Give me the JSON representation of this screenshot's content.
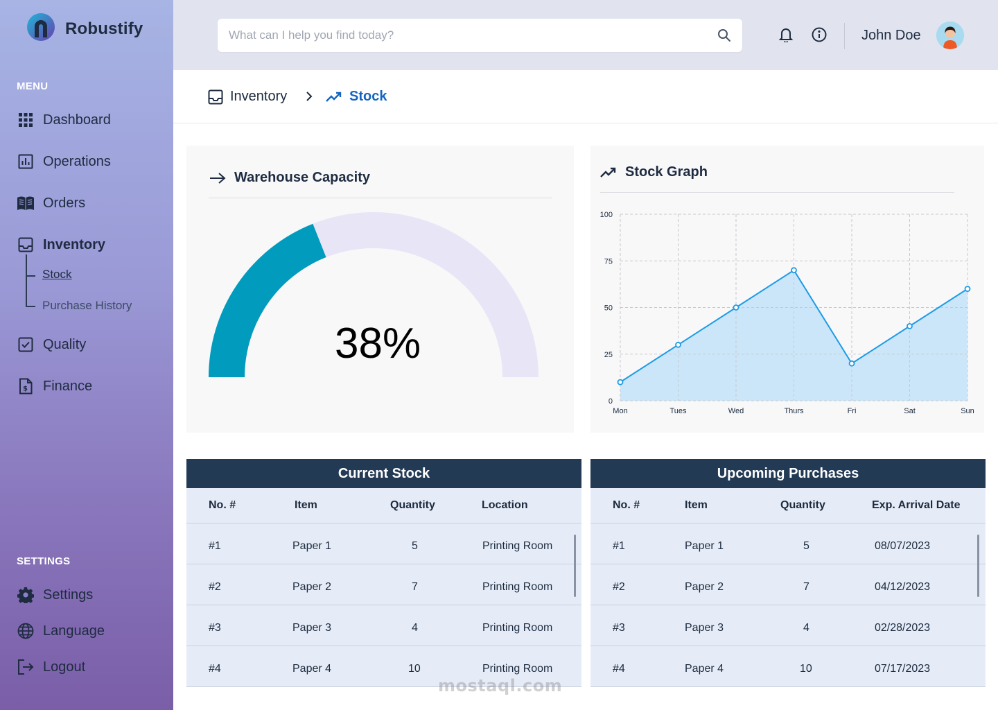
{
  "brand": {
    "name": "Robustify"
  },
  "sidebar": {
    "menu_label": "MENU",
    "items": [
      {
        "label": "Dashboard",
        "icon": "grid-icon"
      },
      {
        "label": "Operations",
        "icon": "bar-chart-icon"
      },
      {
        "label": "Orders",
        "icon": "book-icon"
      },
      {
        "label": "Inventory",
        "icon": "inbox-icon"
      },
      {
        "label": "Quality",
        "icon": "checkbox-icon"
      },
      {
        "label": "Finance",
        "icon": "invoice-icon"
      }
    ],
    "sub_items": [
      {
        "label": "Stock"
      },
      {
        "label": "Purchase History"
      }
    ],
    "settings_label": "SETTINGS",
    "settings_items": [
      {
        "label": "Settings",
        "icon": "gear-icon"
      },
      {
        "label": "Language",
        "icon": "globe-icon"
      },
      {
        "label": "Logout",
        "icon": "logout-icon"
      }
    ]
  },
  "header": {
    "search_placeholder": "What can I help you find today?",
    "user_name": "John Doe"
  },
  "breadcrumb": {
    "parent": "Inventory",
    "current": "Stock"
  },
  "warehouse": {
    "title": "Warehouse Capacity",
    "value_label": "38%",
    "fraction": 0.38,
    "fill_color": "#009bbd",
    "track_color": "#e8e6f6"
  },
  "stock_graph": {
    "title": "Stock Graph"
  },
  "chart_data": {
    "type": "area",
    "categories": [
      "Mon",
      "Tues",
      "Wed",
      "Thurs",
      "Fri",
      "Sat",
      "Sun"
    ],
    "values": [
      10,
      30,
      50,
      70,
      20,
      40,
      60
    ],
    "yticks": [
      "0",
      "25",
      "50",
      "75",
      "100"
    ],
    "ylim": [
      0,
      100
    ],
    "grid": true,
    "line_color": "#1e9be6",
    "fill_color": "#cce6f9"
  },
  "current_stock": {
    "title": "Current Stock",
    "columns": [
      "No. #",
      "Item",
      "Quantity",
      "Location"
    ],
    "rows": [
      [
        "#1",
        "Paper 1",
        "5",
        "Printing Room"
      ],
      [
        "#2",
        "Paper 2",
        "7",
        "Printing Room"
      ],
      [
        "#3",
        "Paper 3",
        "4",
        "Printing Room"
      ],
      [
        "#4",
        "Paper 4",
        "10",
        "Printing Room"
      ]
    ]
  },
  "upcoming_purchases": {
    "title": "Upcoming Purchases",
    "columns": [
      "No. #",
      "Item",
      "Quantity",
      "Exp. Arrival Date"
    ],
    "rows": [
      [
        "#1",
        "Paper 1",
        "5",
        "08/07/2023"
      ],
      [
        "#2",
        "Paper 2",
        "7",
        "04/12/2023"
      ],
      [
        "#3",
        "Paper 3",
        "4",
        "02/28/2023"
      ],
      [
        "#4",
        "Paper 4",
        "10",
        "07/17/2023"
      ]
    ]
  },
  "watermark": {
    "text": "mostaql.com"
  },
  "colors": {
    "header_navy": "#233a55",
    "accent_blue": "#1565c0"
  }
}
